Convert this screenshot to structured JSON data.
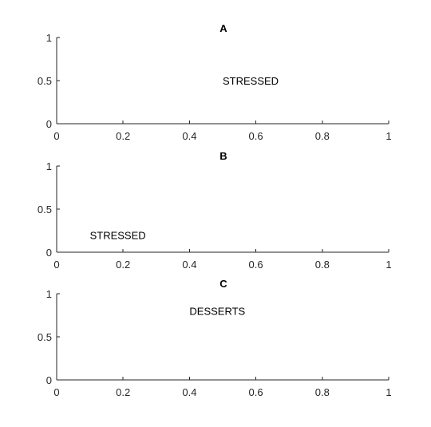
{
  "chart_data": [
    {
      "type": "scatter",
      "title": "A",
      "xlabel": "",
      "ylabel": "",
      "xlim": [
        0,
        1
      ],
      "ylim": [
        0,
        1
      ],
      "xticks": [
        "0",
        "0.2",
        "0.4",
        "0.6",
        "0.8",
        "1"
      ],
      "yticks": [
        "0",
        "0.5",
        "1"
      ],
      "grid": false,
      "annotations": [
        {
          "text": "STRESSED",
          "x": 0.5,
          "y": 0.5
        }
      ]
    },
    {
      "type": "scatter",
      "title": "B",
      "xlabel": "",
      "ylabel": "",
      "xlim": [
        0,
        1
      ],
      "ylim": [
        0,
        1
      ],
      "xticks": [
        "0",
        "0.2",
        "0.4",
        "0.6",
        "0.8",
        "1"
      ],
      "yticks": [
        "0",
        "0.5",
        "1"
      ],
      "grid": false,
      "annotations": [
        {
          "text": "STRESSED",
          "x": 0.1,
          "y": 0.2
        }
      ]
    },
    {
      "type": "scatter",
      "title": "C",
      "xlabel": "",
      "ylabel": "",
      "xlim": [
        0,
        1
      ],
      "ylim": [
        0,
        1
      ],
      "xticks": [
        "0",
        "0.2",
        "0.4",
        "0.6",
        "0.8",
        "1"
      ],
      "yticks": [
        "0",
        "0.5",
        "1"
      ],
      "grid": false,
      "annotations": [
        {
          "text": "DESSERTS",
          "x": 0.4,
          "y": 0.8
        }
      ]
    }
  ]
}
